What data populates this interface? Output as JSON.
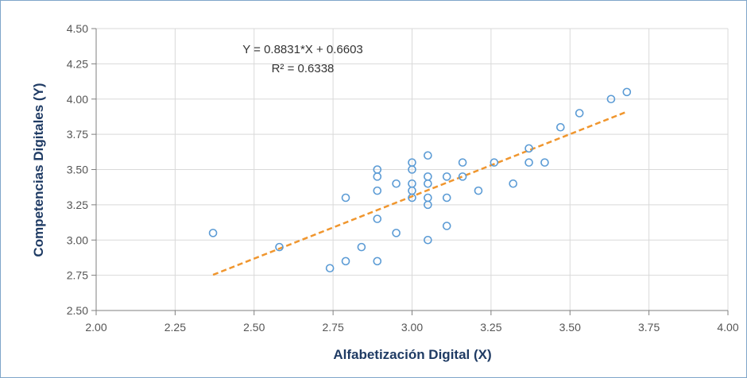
{
  "chart_data": {
    "type": "scatter",
    "title": "",
    "xlabel": "Alfabetización  Digital (X)",
    "ylabel": "Competencias  Digitales (Y)",
    "xlim": [
      2.0,
      4.0
    ],
    "ylim": [
      2.5,
      4.5
    ],
    "x_ticks": [
      "2.00",
      "2.25",
      "2.50",
      "2.75",
      "3.00",
      "3.25",
      "3.50",
      "3.75",
      "4.00"
    ],
    "y_ticks": [
      "2.50",
      "2.75",
      "3.00",
      "3.25",
      "3.50",
      "3.75",
      "4.00",
      "4.25",
      "4.50"
    ],
    "grid": true,
    "series": [
      {
        "points": [
          [
            2.37,
            3.05
          ],
          [
            2.58,
            2.95
          ],
          [
            2.74,
            2.8
          ],
          [
            2.79,
            2.85
          ],
          [
            2.79,
            3.3
          ],
          [
            2.84,
            2.95
          ],
          [
            2.89,
            2.85
          ],
          [
            2.89,
            3.15
          ],
          [
            2.89,
            3.35
          ],
          [
            2.89,
            3.45
          ],
          [
            2.89,
            3.5
          ],
          [
            2.95,
            3.05
          ],
          [
            2.95,
            3.4
          ],
          [
            3.0,
            3.3
          ],
          [
            3.0,
            3.35
          ],
          [
            3.0,
            3.4
          ],
          [
            3.0,
            3.5
          ],
          [
            3.0,
            3.55
          ],
          [
            3.05,
            3.0
          ],
          [
            3.05,
            3.25
          ],
          [
            3.05,
            3.3
          ],
          [
            3.05,
            3.4
          ],
          [
            3.05,
            3.45
          ],
          [
            3.05,
            3.6
          ],
          [
            3.11,
            3.1
          ],
          [
            3.11,
            3.3
          ],
          [
            3.11,
            3.45
          ],
          [
            3.16,
            3.45
          ],
          [
            3.16,
            3.55
          ],
          [
            3.21,
            3.35
          ],
          [
            3.26,
            3.55
          ],
          [
            3.32,
            3.4
          ],
          [
            3.37,
            3.55
          ],
          [
            3.37,
            3.65
          ],
          [
            3.42,
            3.55
          ],
          [
            3.47,
            3.8
          ],
          [
            3.53,
            3.9
          ],
          [
            3.63,
            4.0
          ],
          [
            3.68,
            4.05
          ]
        ],
        "color": "#5b9bd5"
      }
    ],
    "trendline": {
      "slope": 0.8831,
      "intercept": 0.6603,
      "x_range": [
        2.37,
        3.68
      ],
      "color": "#f0962e",
      "style": "dashed"
    },
    "annotations": {
      "equation": "Y = 0.8831*X  + 0.6603",
      "r_squared": "R² = 0.6338"
    }
  }
}
